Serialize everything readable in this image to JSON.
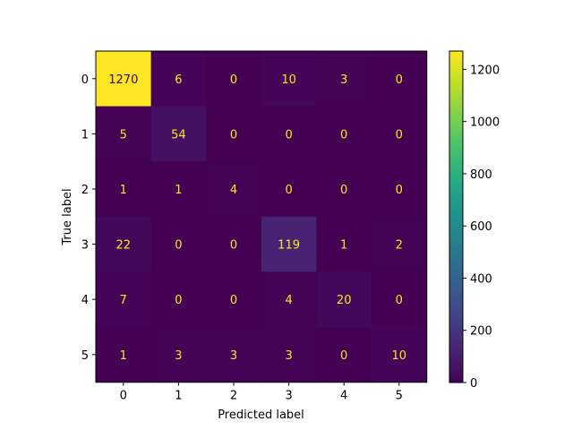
{
  "chart_data": {
    "type": "heatmap",
    "title": "",
    "xlabel": "Predicted label",
    "ylabel": "True label",
    "x_categories": [
      "0",
      "1",
      "2",
      "3",
      "4",
      "5"
    ],
    "y_categories": [
      "0",
      "1",
      "2",
      "3",
      "4",
      "5"
    ],
    "matrix": [
      [
        1270,
        6,
        0,
        10,
        3,
        0
      ],
      [
        5,
        54,
        0,
        0,
        0,
        0
      ],
      [
        1,
        1,
        4,
        0,
        0,
        0
      ],
      [
        22,
        0,
        0,
        119,
        1,
        2
      ],
      [
        7,
        0,
        0,
        4,
        20,
        0
      ],
      [
        1,
        3,
        3,
        3,
        0,
        10
      ]
    ],
    "colormap": "viridis",
    "colorbar": {
      "ticks": [
        0,
        200,
        400,
        600,
        800,
        1000,
        1200
      ],
      "range": [
        0,
        1270
      ]
    },
    "colors": {
      "text_on_dark": "#fde725",
      "text_on_light": "#440154"
    }
  }
}
